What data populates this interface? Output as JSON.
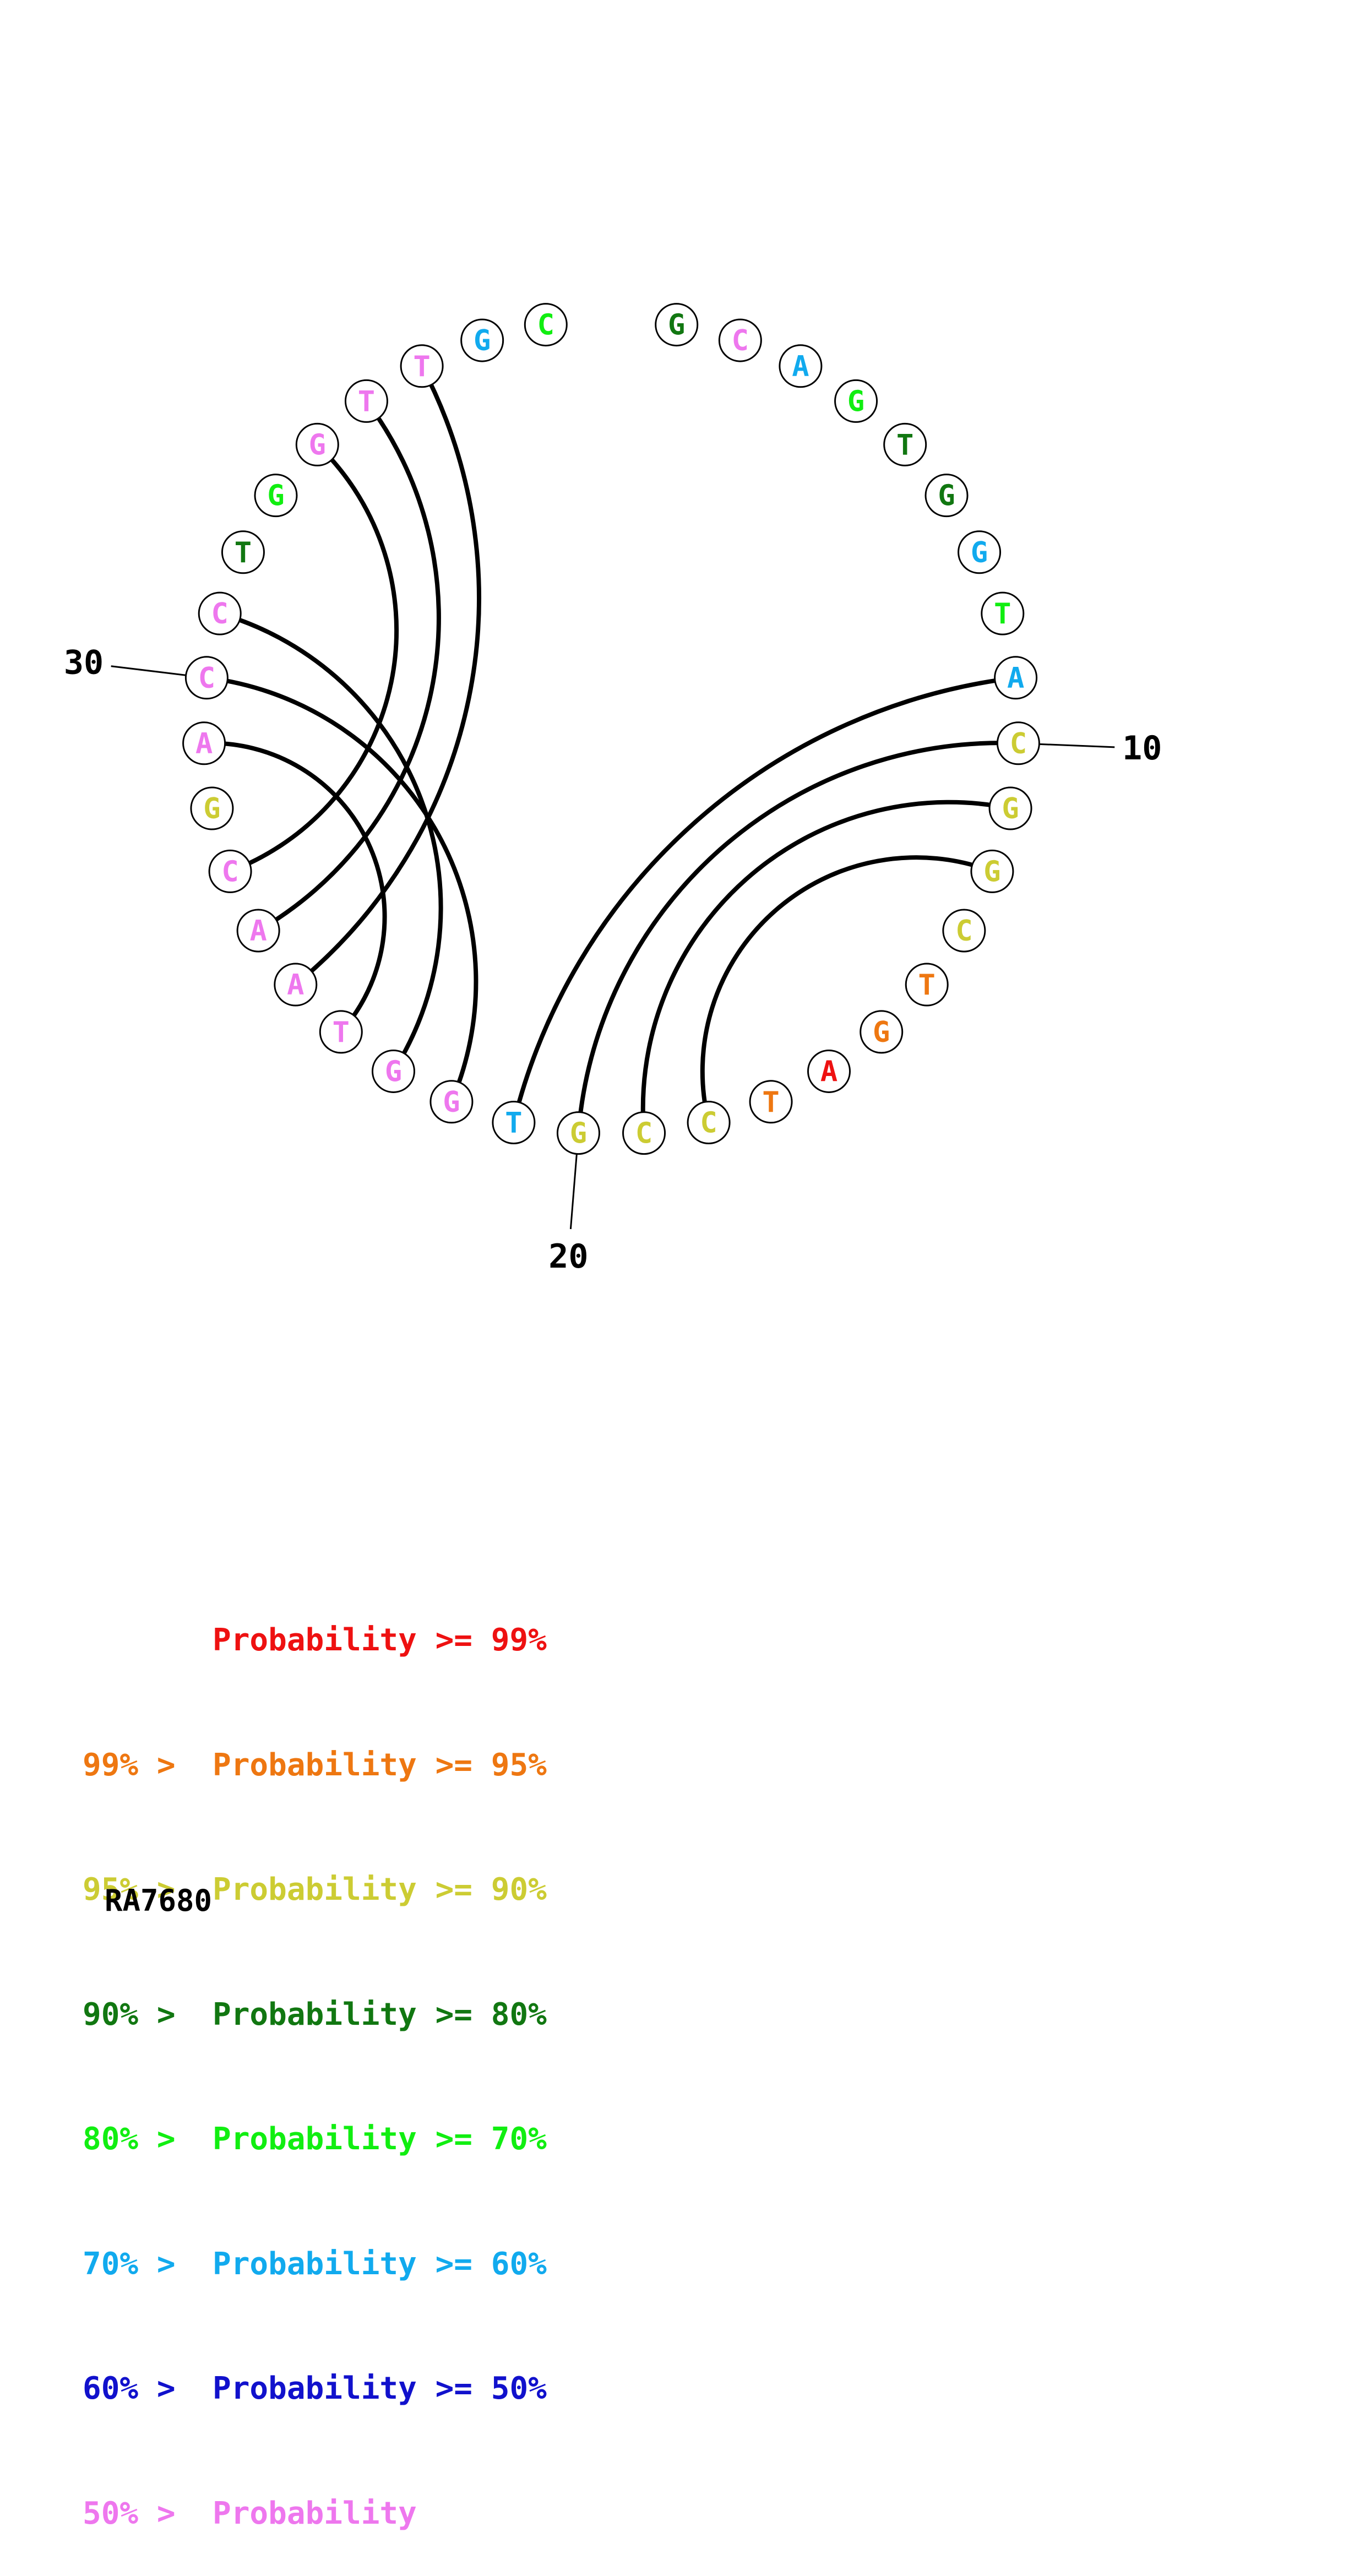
{
  "colors": {
    "p99": "#ee1111",
    "p95": "#ee7711",
    "p90": "#cccc33",
    "p80": "#117711",
    "p70": "#11ee11",
    "p60": "#11aaee",
    "p50": "#1111cc",
    "plow": "#ee77ee"
  },
  "nucleotides": [
    {
      "index": 1,
      "base": "G",
      "color": "#117711"
    },
    {
      "index": 2,
      "base": "C",
      "color": "#ee77ee"
    },
    {
      "index": 3,
      "base": "A",
      "color": "#11aaee"
    },
    {
      "index": 4,
      "base": "G",
      "color": "#11ee11"
    },
    {
      "index": 5,
      "base": "T",
      "color": "#117711"
    },
    {
      "index": 6,
      "base": "G",
      "color": "#117711"
    },
    {
      "index": 7,
      "base": "G",
      "color": "#11aaee"
    },
    {
      "index": 8,
      "base": "T",
      "color": "#11ee11"
    },
    {
      "index": 9,
      "base": "A",
      "color": "#11aaee"
    },
    {
      "index": 10,
      "base": "C",
      "color": "#cccc33"
    },
    {
      "index": 11,
      "base": "G",
      "color": "#cccc33"
    },
    {
      "index": 12,
      "base": "G",
      "color": "#cccc33"
    },
    {
      "index": 13,
      "base": "C",
      "color": "#cccc33"
    },
    {
      "index": 14,
      "base": "T",
      "color": "#ee7711"
    },
    {
      "index": 15,
      "base": "G",
      "color": "#ee7711"
    },
    {
      "index": 16,
      "base": "A",
      "color": "#ee1111"
    },
    {
      "index": 17,
      "base": "T",
      "color": "#ee7711"
    },
    {
      "index": 18,
      "base": "C",
      "color": "#cccc33"
    },
    {
      "index": 19,
      "base": "C",
      "color": "#cccc33"
    },
    {
      "index": 20,
      "base": "G",
      "color": "#cccc33"
    },
    {
      "index": 21,
      "base": "T",
      "color": "#11aaee"
    },
    {
      "index": 22,
      "base": "G",
      "color": "#ee77ee"
    },
    {
      "index": 23,
      "base": "G",
      "color": "#ee77ee"
    },
    {
      "index": 24,
      "base": "T",
      "color": "#ee77ee"
    },
    {
      "index": 25,
      "base": "A",
      "color": "#ee77ee"
    },
    {
      "index": 26,
      "base": "A",
      "color": "#ee77ee"
    },
    {
      "index": 27,
      "base": "C",
      "color": "#ee77ee"
    },
    {
      "index": 28,
      "base": "G",
      "color": "#cccc33"
    },
    {
      "index": 29,
      "base": "A",
      "color": "#ee77ee"
    },
    {
      "index": 30,
      "base": "C",
      "color": "#ee77ee"
    },
    {
      "index": 31,
      "base": "C",
      "color": "#ee77ee"
    },
    {
      "index": 32,
      "base": "T",
      "color": "#117711"
    },
    {
      "index": 33,
      "base": "G",
      "color": "#11ee11"
    },
    {
      "index": 34,
      "base": "G",
      "color": "#ee77ee"
    },
    {
      "index": 35,
      "base": "T",
      "color": "#ee77ee"
    },
    {
      "index": 36,
      "base": "T",
      "color": "#ee77ee"
    },
    {
      "index": 37,
      "base": "G",
      "color": "#11aaee"
    },
    {
      "index": 38,
      "base": "C",
      "color": "#11ee11"
    }
  ],
  "pairs": [
    [
      9,
      21
    ],
    [
      10,
      20
    ],
    [
      11,
      19
    ],
    [
      12,
      18
    ],
    [
      31,
      23
    ],
    [
      30,
      22
    ],
    [
      29,
      24
    ],
    [
      34,
      27
    ],
    [
      35,
      26
    ],
    [
      36,
      25
    ]
  ],
  "position_labels": [
    {
      "index": 10,
      "text": "10"
    },
    {
      "index": 20,
      "text": "20"
    },
    {
      "index": 30,
      "text": "30"
    }
  ],
  "legend": [
    {
      "lo": "",
      "mid": "Probability",
      "hi": ">= 99%",
      "color": "#ee1111"
    },
    {
      "lo": "99% >",
      "mid": "Probability",
      "hi": ">= 95%",
      "color": "#ee7711"
    },
    {
      "lo": "95% >",
      "mid": "Probability",
      "hi": ">= 90%",
      "color": "#cccc33"
    },
    {
      "lo": "90% >",
      "mid": "Probability",
      "hi": ">= 80%",
      "color": "#117711"
    },
    {
      "lo": "80% >",
      "mid": "Probability",
      "hi": ">= 70%",
      "color": "#11ee11"
    },
    {
      "lo": "70% >",
      "mid": "Probability",
      "hi": ">= 60%",
      "color": "#11aaee"
    },
    {
      "lo": "60% >",
      "mid": "Probability",
      "hi": ">= 50%",
      "color": "#1111cc"
    },
    {
      "lo": "50% >",
      "mid": "Probability",
      "hi": "",
      "color": "#ee77ee"
    }
  ],
  "identifier": "RA7680"
}
